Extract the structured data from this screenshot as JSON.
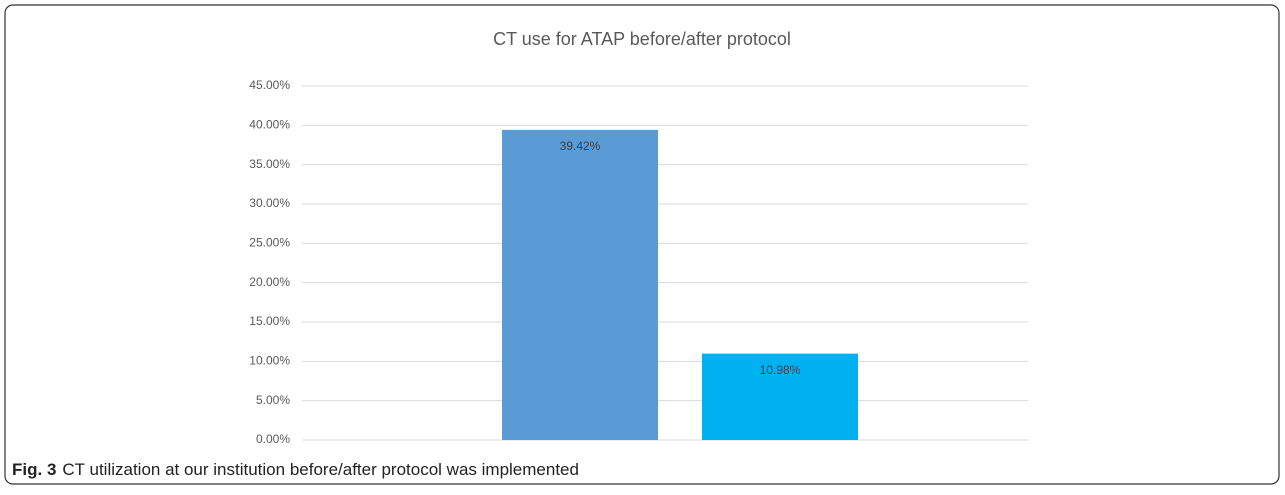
{
  "chart_data": {
    "type": "bar",
    "title": "CT use for ATAP before/after protocol",
    "categories": [
      null
    ],
    "series": [
      {
        "color": "#5b9bd5",
        "values": [
          39.42
        ],
        "value_labels": [
          "39.42%"
        ]
      },
      {
        "color": "#00b0f0",
        "values": [
          10.98
        ],
        "value_labels": [
          "10.98%"
        ]
      }
    ],
    "ylim": [
      0,
      45
    ],
    "yticks": [
      {
        "value": 0,
        "label": "0.00%"
      },
      {
        "value": 5,
        "label": "5.00%"
      },
      {
        "value": 10,
        "label": "10.00%"
      },
      {
        "value": 15,
        "label": "15.00%"
      },
      {
        "value": 20,
        "label": "20.00%"
      },
      {
        "value": 25,
        "label": "25.00%"
      },
      {
        "value": 30,
        "label": "30.00%"
      },
      {
        "value": 35,
        "label": "35.00%"
      },
      {
        "value": 40,
        "label": "40.00%"
      },
      {
        "value": 45,
        "label": "45.00%"
      }
    ],
    "grid": true
  },
  "caption": {
    "label": "Fig. 3",
    "text": "CT utilization at our institution before/after protocol was implemented"
  }
}
